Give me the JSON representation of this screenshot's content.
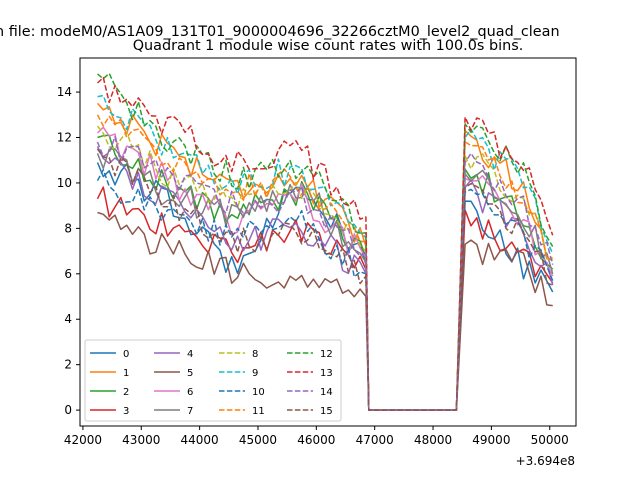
{
  "figure": {
    "suptitle": "n file: modeM0/AS1A09_131T01_9000004696_32266cztM0_level2_quad_clean",
    "title": "Quadrant 1 module wise count rates with 100.0s bins.",
    "offset_label": "+3.694e8"
  },
  "chart_data": {
    "type": "line",
    "title": "Quadrant 1 module wise count rates with 100.0s bins.",
    "xlabel": "",
    "ylabel": "",
    "x_offset": 369400000,
    "xlim": [
      41950,
      50450
    ],
    "ylim": [
      -0.7,
      15.5
    ],
    "x_ticks": [
      42000,
      43000,
      44000,
      45000,
      46000,
      47000,
      48000,
      49000,
      50000
    ],
    "x_tick_labels": [
      "42000",
      "43000",
      "44000",
      "45000",
      "46000",
      "47000",
      "48000",
      "49000",
      "50000"
    ],
    "y_ticks": [
      0,
      2,
      4,
      6,
      8,
      10,
      12,
      14
    ],
    "y_tick_labels": [
      "0",
      "2",
      "4",
      "6",
      "8",
      "10",
      "12",
      "14"
    ],
    "grid": false,
    "legend_position": "lower-left",
    "legend_columns": 4,
    "gap": {
      "start": 46900,
      "end": 48400
    },
    "segments": [
      {
        "start": 42250,
        "end": 46850
      },
      {
        "start": 48550,
        "end": 50050
      }
    ],
    "series": [
      {
        "name": "0",
        "color": "#1f77b4",
        "dash": "solid",
        "level1": [
          10.9,
          9.3,
          6.3,
          10.1,
          6.4
        ],
        "level2": [
          9.2,
          7.9,
          6.2,
          5.2
        ]
      },
      {
        "name": "1",
        "color": "#ff7f0e",
        "dash": "solid",
        "level1": [
          13.5,
          11.6,
          9.8,
          10.3,
          7.2
        ],
        "level2": [
          12.3,
          11.0,
          9.8,
          6.6
        ]
      },
      {
        "name": "2",
        "color": "#2ca02c",
        "dash": "solid",
        "level1": [
          12.0,
          10.0,
          8.5,
          9.7,
          6.7
        ],
        "level2": [
          10.6,
          9.7,
          8.4,
          6.2
        ]
      },
      {
        "name": "3",
        "color": "#d62728",
        "dash": "solid",
        "level1": [
          9.3,
          8.1,
          7.0,
          8.0,
          6.2
        ],
        "level2": [
          8.8,
          7.6,
          6.7,
          5.6
        ]
      },
      {
        "name": "4",
        "color": "#9467bd",
        "dash": "solid",
        "level1": [
          11.6,
          9.2,
          7.3,
          8.1,
          6.0
        ],
        "level2": [
          9.8,
          8.9,
          7.9,
          5.5
        ]
      },
      {
        "name": "5",
        "color": "#8c564b",
        "dash": "solid",
        "level1": [
          8.7,
          7.1,
          6.0,
          5.8,
          5.0
        ],
        "level2": [
          7.3,
          6.8,
          6.4,
          4.6
        ]
      },
      {
        "name": "6",
        "color": "#e377c2",
        "dash": "solid",
        "level1": [
          12.2,
          10.2,
          8.3,
          9.6,
          6.7
        ],
        "level2": [
          10.2,
          9.4,
          8.4,
          5.9
        ]
      },
      {
        "name": "7",
        "color": "#7f7f7f",
        "dash": "solid",
        "level1": [
          11.3,
          9.6,
          8.5,
          10.0,
          6.5
        ],
        "level2": [
          10.4,
          9.7,
          8.6,
          6.0
        ]
      },
      {
        "name": "8",
        "color": "#bcbd22",
        "dash": "dashed",
        "level1": [
          12.5,
          10.5,
          9.0,
          9.6,
          7.0
        ],
        "level2": [
          11.2,
          10.4,
          9.2,
          6.6
        ]
      },
      {
        "name": "9",
        "color": "#17becf",
        "dash": "dashed",
        "level1": [
          13.8,
          11.7,
          10.0,
          10.6,
          7.6
        ],
        "level2": [
          12.0,
          11.1,
          10.2,
          6.9
        ]
      },
      {
        "name": "10",
        "color": "#1f77b4",
        "dash": "dashed",
        "level1": [
          10.1,
          8.8,
          7.6,
          8.4,
          6.0
        ],
        "level2": [
          9.6,
          8.6,
          7.6,
          5.7
        ]
      },
      {
        "name": "11",
        "color": "#ff7f0e",
        "dash": "dashed",
        "level1": [
          13.0,
          11.2,
          9.7,
          10.1,
          7.4
        ],
        "level2": [
          11.8,
          10.6,
          9.4,
          6.7
        ]
      },
      {
        "name": "12",
        "color": "#2ca02c",
        "dash": "dashed",
        "level1": [
          14.8,
          12.0,
          10.2,
          10.8,
          7.8
        ],
        "level2": [
          12.6,
          11.5,
          10.5,
          7.2
        ]
      },
      {
        "name": "13",
        "color": "#d62728",
        "dash": "dashed",
        "level1": [
          14.4,
          12.5,
          11.0,
          11.4,
          8.5
        ],
        "level2": [
          12.9,
          11.9,
          10.7,
          7.7
        ]
      },
      {
        "name": "14",
        "color": "#9467bd",
        "dash": "dashed",
        "level1": [
          11.8,
          10.6,
          9.0,
          9.4,
          7.0
        ],
        "level2": [
          10.9,
          10.0,
          8.9,
          6.4
        ]
      },
      {
        "name": "15",
        "color": "#8c564b",
        "dash": "dashed",
        "level1": [
          11.5,
          9.2,
          7.4,
          7.9,
          5.9
        ],
        "level2": [
          9.8,
          8.9,
          7.8,
          5.5
        ]
      }
    ]
  }
}
